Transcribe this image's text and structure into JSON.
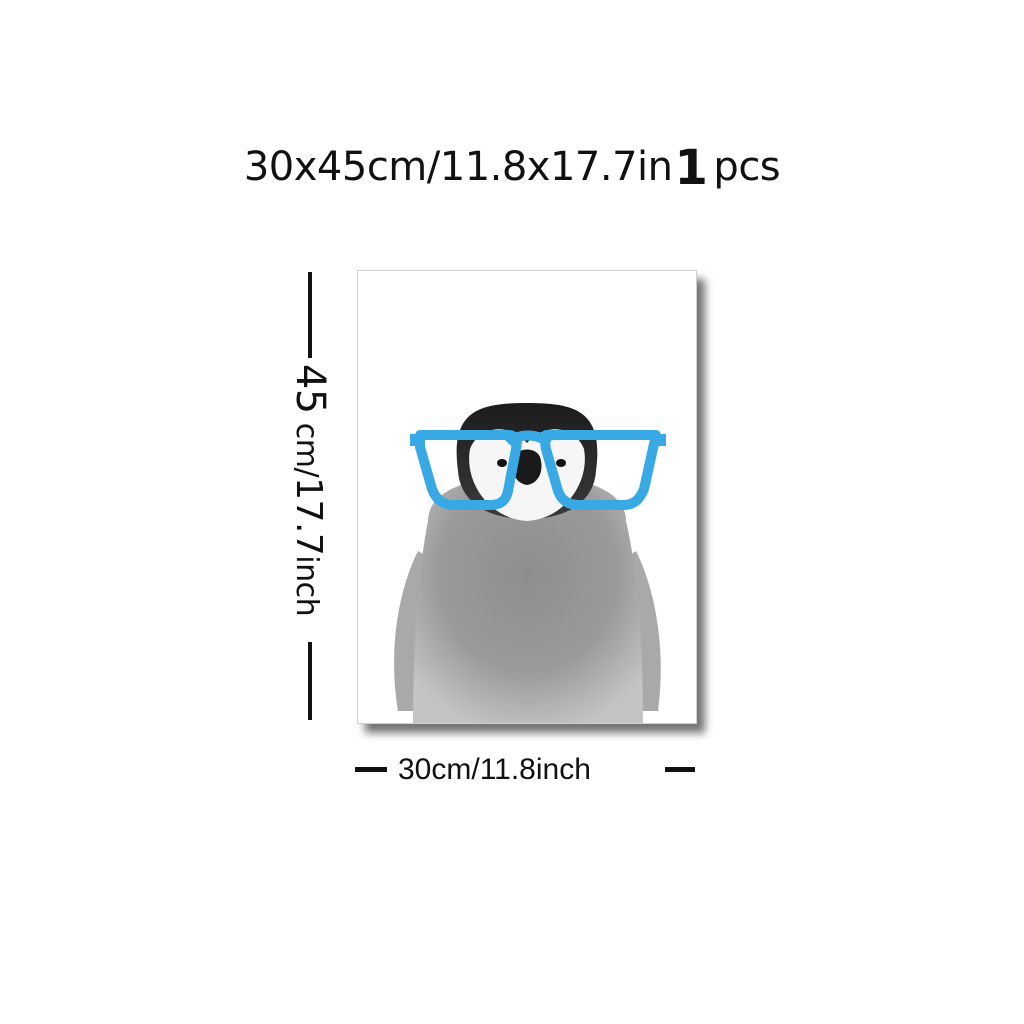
{
  "headline": {
    "size": "30x45cm/11.8x17.7in",
    "quantity": "1",
    "unit": "pcs"
  },
  "height_dimension": {
    "value_cm": "45",
    "unit_cm": "cm/",
    "value_in": "17.7",
    "unit_in": "inch"
  },
  "width_dimension": {
    "label": "30cm/11.8inch"
  },
  "poster": {
    "subject": "penguin-with-glasses",
    "glasses_color": "#39a9e6"
  }
}
